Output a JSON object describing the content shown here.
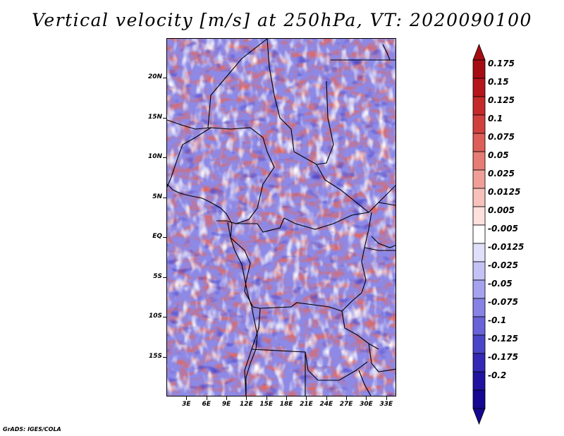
{
  "title": "Vertical velocity [m/s] at 250hPa, VT: 2020090100",
  "credit": "GrADS: IGES/COLA",
  "map": {
    "lat_labels": [
      "20N",
      "15N",
      "10N",
      "5N",
      "EQ",
      "5S",
      "10S",
      "15S"
    ],
    "lat_values": [
      20,
      15,
      10,
      5,
      0,
      -5,
      -10,
      -15
    ],
    "lon_labels": [
      "3E",
      "6E",
      "9E",
      "12E",
      "15E",
      "18E",
      "21E",
      "24E",
      "27E",
      "30E",
      "33E"
    ],
    "lon_values": [
      3,
      6,
      9,
      12,
      15,
      18,
      21,
      24,
      27,
      30,
      33
    ],
    "lat_range": [
      -20,
      25
    ],
    "lon_range": [
      0,
      34.5
    ]
  },
  "colorbar": {
    "labels": [
      "0.175",
      "0.15",
      "0.125",
      "0.1",
      "0.075",
      "0.05",
      "0.025",
      "0.0125",
      "0.005",
      "-0.005",
      "-0.0125",
      "-0.025",
      "-0.05",
      "-0.075",
      "-0.1",
      "-0.125",
      "-0.175",
      "-0.2"
    ],
    "colors": [
      "#a50d13",
      "#b4161c",
      "#c52a2a",
      "#d0413e",
      "#dd5e58",
      "#e67c74",
      "#f09f98",
      "#f7c2bc",
      "#fce1dd",
      "#ffffff",
      "#e1e0fb",
      "#c4c2f5",
      "#a6a3ee",
      "#8783e5",
      "#6863d8",
      "#4b45c8",
      "#3329b4",
      "#21139f",
      "#150791"
    ],
    "top_color": "#a50d13",
    "bottom_color": "#150791"
  }
}
